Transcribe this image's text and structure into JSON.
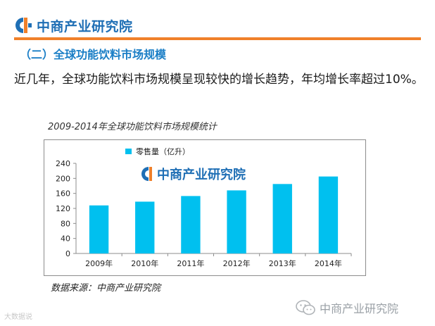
{
  "header": {
    "brand": "中商产业研究院",
    "accent_color": "#f0802a",
    "brand_color": "#1f6fb5"
  },
  "section_title": "（二）全球功能饮料市场规模",
  "lead_text": "近几年，全球功能饮料市场规模呈现较快的增长趋势，年均增长率超过10%。",
  "chart_caption": "2009-2014年全球功能饮料市场规模统计",
  "source": "数据来源：中商产业研究院",
  "footer": {
    "left_watermark": "大数据说",
    "brand": "中商产业研究院",
    "wechat_icon": "wechat-icon"
  },
  "chart_data": {
    "type": "bar",
    "title": "2009-2014年全球功能饮料市场规模统计",
    "watermark": "中商产业研究院",
    "categories": [
      "2009年",
      "2010年",
      "2011年",
      "2012年",
      "2013年",
      "2014年"
    ],
    "series": [
      {
        "name": "零售量（亿升）",
        "values": [
          128,
          138,
          153,
          168,
          185,
          205
        ],
        "color": "#00c0ef"
      }
    ],
    "y_ticks": [
      "0",
      "40",
      "80",
      "120",
      "160",
      "200",
      "240"
    ],
    "ylim": [
      0,
      240
    ],
    "xlabel": "",
    "ylabel": "",
    "grid": false,
    "legend": "top-left"
  }
}
